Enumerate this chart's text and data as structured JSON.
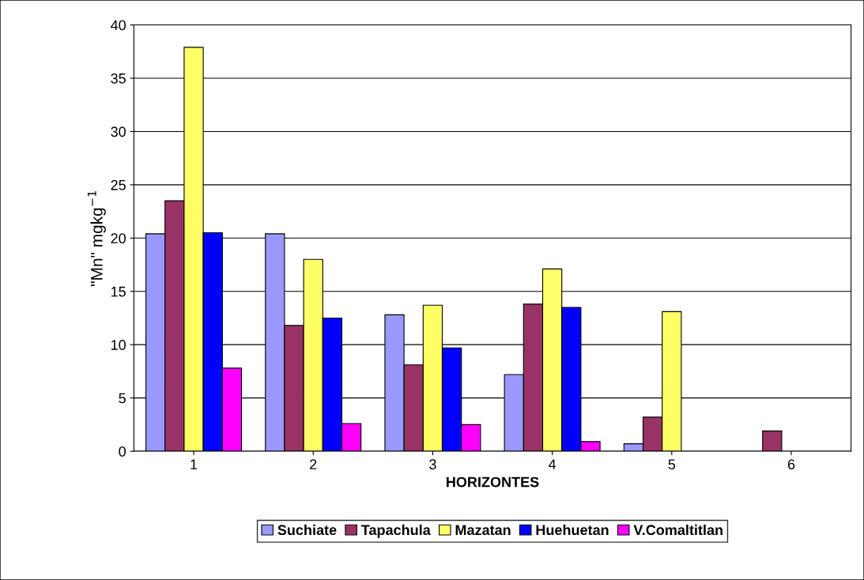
{
  "chart_data": {
    "type": "bar",
    "xlabel": "HORIZONTES",
    "ylabel": "\"Mn\" mgkg$^{−1}$",
    "categories": [
      "1",
      "2",
      "3",
      "4",
      "5",
      "6"
    ],
    "series": [
      {
        "name": "Suchiate",
        "color": "#9999ff",
        "values": [
          20.4,
          20.4,
          12.8,
          7.2,
          0.7,
          null
        ]
      },
      {
        "name": "Tapachula",
        "color": "#993366",
        "values": [
          23.5,
          11.8,
          8.1,
          13.8,
          3.2,
          1.9
        ]
      },
      {
        "name": "Mazatan",
        "color": "#ffff66",
        "values": [
          37.9,
          18.0,
          13.7,
          17.1,
          13.1,
          null
        ]
      },
      {
        "name": "Huehuetan",
        "color": "#0000ff",
        "values": [
          20.5,
          12.5,
          9.7,
          13.5,
          null,
          null
        ]
      },
      {
        "name": "V.Comaltitlan",
        "color": "#ff00ff",
        "values": [
          7.8,
          2.6,
          2.5,
          0.9,
          null,
          null
        ]
      }
    ],
    "ylim": [
      0,
      40
    ],
    "yticks": [
      0,
      5,
      10,
      15,
      20,
      25,
      30,
      35,
      40
    ],
    "grid": "y",
    "legend": "bottom"
  }
}
